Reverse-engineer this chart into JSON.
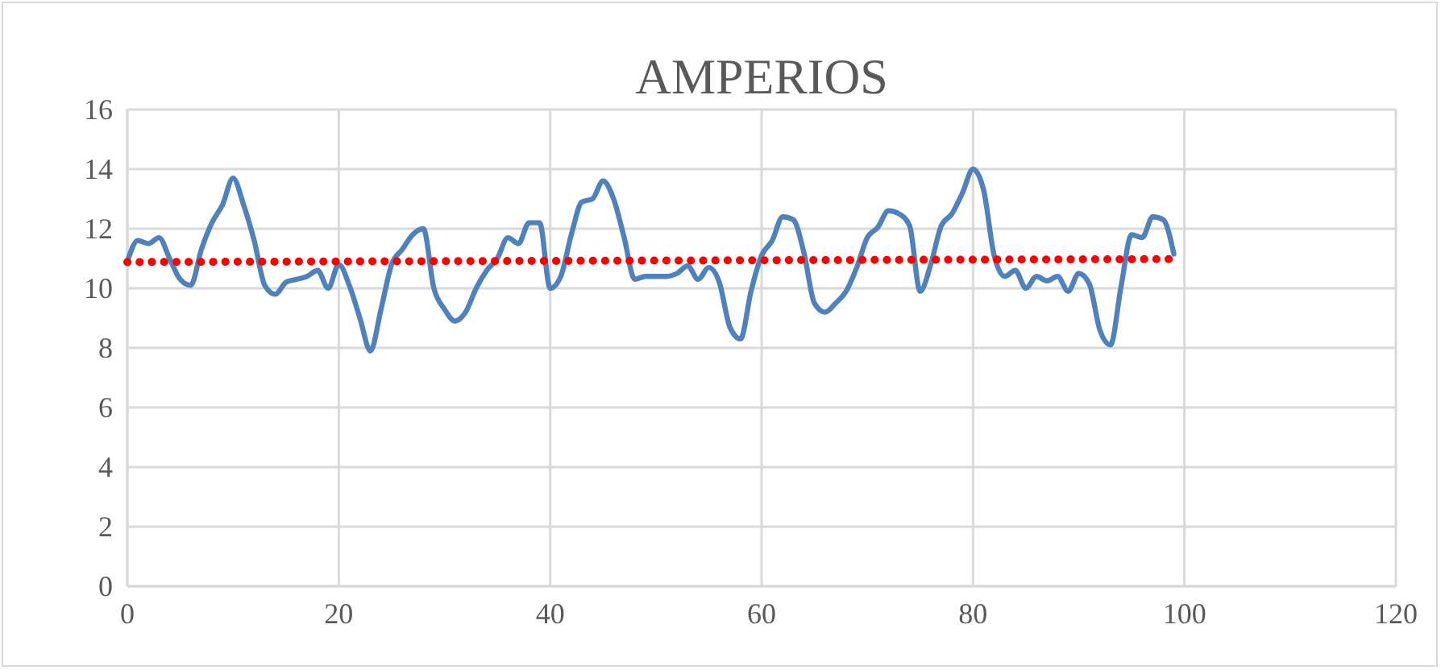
{
  "chart_data": {
    "type": "line",
    "title": "AMPERIOS",
    "xlim": [
      0,
      120
    ],
    "xticks": [
      0,
      20,
      40,
      60,
      80,
      100,
      120
    ],
    "ylim": [
      0,
      16
    ],
    "yticks": [
      0,
      2,
      4,
      6,
      8,
      10,
      12,
      14,
      16
    ],
    "grid": true,
    "series": [
      {
        "color": "#4f81bd",
        "line_style": "solid",
        "x": [
          0,
          1,
          2,
          3,
          4,
          5,
          6,
          7,
          8,
          9,
          10,
          11,
          12,
          13,
          14,
          15,
          16,
          17,
          18,
          19,
          20,
          21,
          22,
          23,
          24,
          25,
          26,
          27,
          28,
          29,
          30,
          31,
          32,
          33,
          34,
          35,
          36,
          37,
          38,
          39,
          40,
          41,
          42,
          43,
          44,
          45,
          46,
          47,
          48,
          49,
          50,
          51,
          52,
          53,
          54,
          55,
          56,
          57,
          58,
          59,
          60,
          61,
          62,
          63,
          64,
          65,
          66,
          67,
          68,
          69,
          70,
          71,
          72,
          73,
          74,
          75,
          76,
          77,
          78,
          79,
          80,
          81,
          82,
          83,
          84,
          85,
          86,
          87,
          88,
          89,
          90,
          91,
          92,
          93,
          94,
          95,
          96,
          97,
          98,
          99
        ],
        "values": [
          10.9,
          11.6,
          11.5,
          11.7,
          11.0,
          10.3,
          10.1,
          11.3,
          12.2,
          12.8,
          13.7,
          12.8,
          11.6,
          10.1,
          9.8,
          10.2,
          10.3,
          10.4,
          10.6,
          10.0,
          10.8,
          10.1,
          9.0,
          7.9,
          9.3,
          10.8,
          11.3,
          11.8,
          12.0,
          10.0,
          9.3,
          8.9,
          9.2,
          10.0,
          10.6,
          11.0,
          11.7,
          11.5,
          12.2,
          12.2,
          10.0,
          10.4,
          11.8,
          12.9,
          13.0,
          13.6,
          13.0,
          11.7,
          10.3,
          10.4,
          10.4,
          10.4,
          10.5,
          10.75,
          10.3,
          10.7,
          10.2,
          8.7,
          8.3,
          9.9,
          11.1,
          11.6,
          12.4,
          12.3,
          11.2,
          9.5,
          9.2,
          9.5,
          9.9,
          10.7,
          11.7,
          12.05,
          12.6,
          12.5,
          12.1,
          9.9,
          10.8,
          12.1,
          12.5,
          13.2,
          14.0,
          13.3,
          11.1,
          10.4,
          10.6,
          10.0,
          10.4,
          10.25,
          10.4,
          9.9,
          10.5,
          10.15,
          8.6,
          8.1,
          10.05,
          11.8,
          11.7,
          12.4,
          12.3,
          11.15
        ]
      },
      {
        "color": "#ff0000",
        "line_style": "dotted",
        "x": [
          0,
          99
        ],
        "values": [
          10.88,
          10.98
        ]
      }
    ]
  }
}
